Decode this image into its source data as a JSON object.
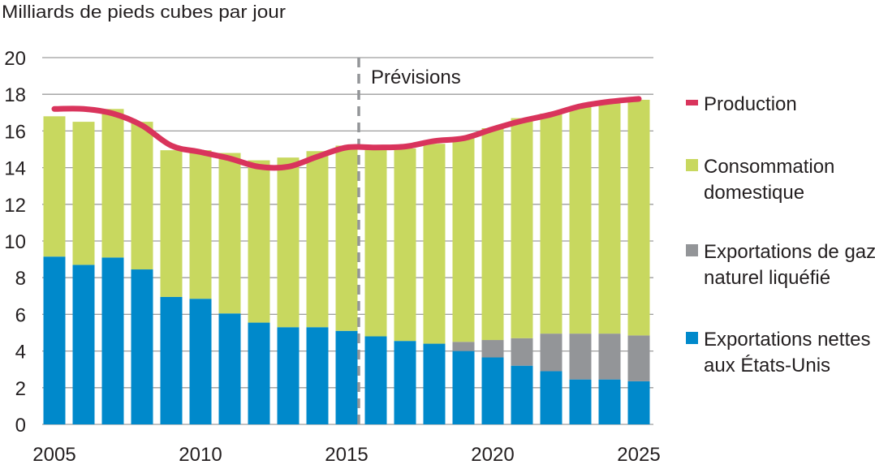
{
  "chart_data": {
    "type": "bar",
    "stacked": true,
    "title": "",
    "ylabel": "Milliards de pieds cubes par jour",
    "xlabel": "",
    "ylim": [
      0,
      20
    ],
    "yticks": [
      0,
      2,
      4,
      6,
      8,
      10,
      12,
      14,
      16,
      18,
      20
    ],
    "xtick_labels": [
      "2005",
      "2010",
      "2015",
      "2020",
      "2025"
    ],
    "grid": true,
    "legend_position": "right",
    "annotation": {
      "label": "Prévisions",
      "after_year": 2015
    },
    "categories": [
      2005,
      2006,
      2007,
      2008,
      2009,
      2010,
      2011,
      2012,
      2013,
      2014,
      2015,
      2016,
      2017,
      2018,
      2019,
      2020,
      2021,
      2022,
      2023,
      2024,
      2025
    ],
    "series": [
      {
        "name": "Exportations nettes aux États-Unis",
        "color": "#0089cb",
        "values": [
          9.15,
          8.7,
          9.1,
          8.45,
          6.95,
          6.85,
          6.05,
          5.55,
          5.3,
          5.3,
          5.1,
          4.8,
          4.55,
          4.4,
          4.0,
          3.65,
          3.2,
          2.9,
          2.45,
          2.45,
          2.35
        ]
      },
      {
        "name": "Exportations de gaz naturel liquéfié",
        "color": "#939598",
        "values": [
          0,
          0,
          0,
          0,
          0,
          0,
          0,
          0,
          0,
          0,
          0,
          0,
          0,
          0,
          0.5,
          0.95,
          1.5,
          2.05,
          2.5,
          2.5,
          2.5
        ]
      },
      {
        "name": "Consommation domestique",
        "color": "#c8d85f",
        "values": [
          7.65,
          7.8,
          8.1,
          8.05,
          8.0,
          8.1,
          8.75,
          8.85,
          9.25,
          9.6,
          10.1,
          10.25,
          10.5,
          10.9,
          11.1,
          11.55,
          12.0,
          12.0,
          12.35,
          12.55,
          12.85
        ]
      }
    ],
    "line_series": {
      "name": "Production",
      "color": "#d9345c",
      "values": [
        17.2,
        17.2,
        16.95,
        16.3,
        15.2,
        14.85,
        14.5,
        14.05,
        14.05,
        14.6,
        15.1,
        15.1,
        15.15,
        15.45,
        15.6,
        16.1,
        16.55,
        16.9,
        17.35,
        17.6,
        17.75
      ]
    },
    "legend": [
      {
        "lines": [
          "Production"
        ],
        "color": "#d9345c"
      },
      {
        "lines": [
          "Consommation",
          "domestique"
        ],
        "color": "#c8d85f"
      },
      {
        "lines": [
          "Exportations de gaz",
          "naturel liquéfié"
        ],
        "color": "#939598"
      },
      {
        "lines": [
          "Exportations nettes",
          "aux États-Unis"
        ],
        "color": "#0089cb"
      }
    ]
  }
}
